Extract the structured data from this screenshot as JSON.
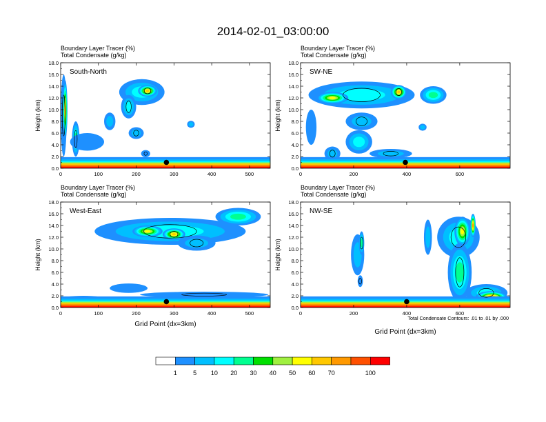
{
  "main_title": "2014-02-01_03:00:00",
  "header_line1": "Boundary Layer Tracer   (%)",
  "header_line2": "Total Condensate   (g/kg)",
  "contour_note": "Total Condensate Contours: .01 to .01 by .000",
  "colors": {
    "levels": [
      "#ffffff",
      "#1e90ff",
      "#00bfff",
      "#00ffff",
      "#00ff90",
      "#00e000",
      "#a0f040",
      "#ffff00",
      "#ffc800",
      "#ff9900",
      "#ff5000",
      "#ff0000"
    ],
    "marker": "#000000",
    "contour": "#000000"
  },
  "chart_data": [
    {
      "type": "heatmap",
      "panel_label": "South-North",
      "ylabel": "Height (km)",
      "xlabel": "",
      "xlim": [
        0,
        555
      ],
      "ylim": [
        0,
        18
      ],
      "xticks": [
        0,
        100,
        200,
        300,
        400,
        500
      ],
      "yticks": [
        "0.0",
        "2.0",
        "4.0",
        "6.0",
        "8.0",
        "10.0",
        "12.0",
        "14.0",
        "16.0",
        "18.0"
      ],
      "marker": {
        "x": 280,
        "y": 1.0
      },
      "features": [
        {
          "kind": "blob",
          "cx": 8,
          "cy": 9,
          "rx": 8,
          "ry": 7,
          "level": 1
        },
        {
          "kind": "blob",
          "cx": 12,
          "cy": 10,
          "rx": 6,
          "ry": 5,
          "level": 8
        },
        {
          "kind": "blob",
          "cx": 40,
          "cy": 5,
          "rx": 10,
          "ry": 3,
          "level": 4
        },
        {
          "kind": "blob",
          "cx": 215,
          "cy": 13,
          "rx": 60,
          "ry": 2.2,
          "level": 3
        },
        {
          "kind": "blob",
          "cx": 230,
          "cy": 13.2,
          "rx": 25,
          "ry": 1,
          "level": 8
        },
        {
          "kind": "blob",
          "cx": 130,
          "cy": 8,
          "rx": 15,
          "ry": 1.5,
          "level": 2
        },
        {
          "kind": "blob",
          "cx": 180,
          "cy": 10.5,
          "rx": 20,
          "ry": 2,
          "level": 3
        },
        {
          "kind": "blob",
          "cx": 70,
          "cy": 4.5,
          "rx": 45,
          "ry": 1.5,
          "level": 1
        },
        {
          "kind": "blob",
          "cx": 200,
          "cy": 6,
          "rx": 20,
          "ry": 1,
          "level": 2
        },
        {
          "kind": "blob",
          "cx": 345,
          "cy": 7.5,
          "rx": 10,
          "ry": 0.6,
          "level": 2
        },
        {
          "kind": "blob",
          "cx": 225,
          "cy": 2.5,
          "rx": 12,
          "ry": 0.6,
          "level": 1
        }
      ]
    },
    {
      "type": "heatmap",
      "panel_label": "SW-NE",
      "ylabel": "Height (km)",
      "xlabel": "",
      "xlim": [
        0,
        790
      ],
      "ylim": [
        0,
        18
      ],
      "xticks": [
        0,
        200,
        400,
        600
      ],
      "yticks": [
        "0.0",
        "2.0",
        "4.0",
        "6.0",
        "8.0",
        "10.0",
        "12.0",
        "14.0",
        "16.0",
        "18.0"
      ],
      "marker": {
        "x": 395,
        "y": 1.0
      },
      "features": [
        {
          "kind": "blob",
          "cx": 230,
          "cy": 12.5,
          "rx": 200,
          "ry": 2.3,
          "level": 3
        },
        {
          "kind": "blob",
          "cx": 120,
          "cy": 12,
          "rx": 60,
          "ry": 1,
          "level": 7
        },
        {
          "kind": "blob",
          "cx": 370,
          "cy": 13,
          "rx": 30,
          "ry": 1.2,
          "level": 8
        },
        {
          "kind": "blob",
          "cx": 500,
          "cy": 12.5,
          "rx": 50,
          "ry": 1.5,
          "level": 4
        },
        {
          "kind": "blob",
          "cx": 230,
          "cy": 8,
          "rx": 60,
          "ry": 1.5,
          "level": 2
        },
        {
          "kind": "blob",
          "cx": 220,
          "cy": 4.5,
          "rx": 50,
          "ry": 2,
          "level": 3
        },
        {
          "kind": "blob",
          "cx": 120,
          "cy": 2.5,
          "rx": 30,
          "ry": 1.2,
          "level": 2
        },
        {
          "kind": "blob",
          "cx": 40,
          "cy": 7,
          "rx": 20,
          "ry": 3,
          "level": 1
        },
        {
          "kind": "blob",
          "cx": 340,
          "cy": 2.5,
          "rx": 80,
          "ry": 0.8,
          "level": 2
        },
        {
          "kind": "blob",
          "cx": 460,
          "cy": 7,
          "rx": 15,
          "ry": 0.6,
          "level": 2
        }
      ]
    },
    {
      "type": "heatmap",
      "panel_label": "West-East",
      "ylabel": "Height (km)",
      "xlabel": "Grid Point (dx=3km)",
      "xlim": [
        0,
        555
      ],
      "ylim": [
        0,
        18
      ],
      "xticks": [
        0,
        100,
        200,
        300,
        400,
        500
      ],
      "yticks": [
        "0.0",
        "2.0",
        "4.0",
        "6.0",
        "8.0",
        "10.0",
        "12.0",
        "14.0",
        "16.0",
        "18.0"
      ],
      "marker": {
        "x": 280,
        "y": 1.0
      },
      "features": [
        {
          "kind": "blob",
          "cx": 290,
          "cy": 13,
          "rx": 200,
          "ry": 2.3,
          "level": 3
        },
        {
          "kind": "blob",
          "cx": 230,
          "cy": 13,
          "rx": 40,
          "ry": 1,
          "level": 7
        },
        {
          "kind": "blob",
          "cx": 300,
          "cy": 12.5,
          "rx": 30,
          "ry": 1,
          "level": 8
        },
        {
          "kind": "blob",
          "cx": 470,
          "cy": 15.5,
          "rx": 60,
          "ry": 1.5,
          "level": 4
        },
        {
          "kind": "blob",
          "cx": 360,
          "cy": 11,
          "rx": 50,
          "ry": 1.3,
          "level": 2
        },
        {
          "kind": "blob",
          "cx": 180,
          "cy": 3.3,
          "rx": 50,
          "ry": 0.8,
          "level": 1
        },
        {
          "kind": "blob",
          "cx": 380,
          "cy": 2.2,
          "rx": 170,
          "ry": 0.5,
          "level": 1
        },
        {
          "kind": "blob",
          "cx": 60,
          "cy": 1.5,
          "rx": 60,
          "ry": 0.5,
          "level": 1
        }
      ]
    },
    {
      "type": "heatmap",
      "panel_label": "NW-SE",
      "ylabel": "Height (km)",
      "xlabel": "Grid Point (dx=3km)",
      "xlim": [
        0,
        790
      ],
      "ylim": [
        0,
        18
      ],
      "xticks": [
        0,
        200,
        400,
        600
      ],
      "yticks": [
        "0.0",
        "2.0",
        "4.0",
        "6.0",
        "8.0",
        "10.0",
        "12.0",
        "14.0",
        "16.0",
        "18.0"
      ],
      "marker": {
        "x": 400,
        "y": 1.0
      },
      "features": [
        {
          "kind": "blob",
          "cx": 595,
          "cy": 12,
          "rx": 80,
          "ry": 3.5,
          "level": 3
        },
        {
          "kind": "blob",
          "cx": 610,
          "cy": 13,
          "rx": 30,
          "ry": 2.5,
          "level": 7
        },
        {
          "kind": "blob",
          "cx": 600,
          "cy": 6,
          "rx": 45,
          "ry": 5,
          "level": 4
        },
        {
          "kind": "blob",
          "cx": 650,
          "cy": 14,
          "rx": 10,
          "ry": 2,
          "level": 9
        },
        {
          "kind": "blob",
          "cx": 700,
          "cy": 2.5,
          "rx": 80,
          "ry": 1.5,
          "level": 3
        },
        {
          "kind": "blob",
          "cx": 215,
          "cy": 9,
          "rx": 25,
          "ry": 3.5,
          "level": 2
        },
        {
          "kind": "blob",
          "cx": 230,
          "cy": 11,
          "rx": 10,
          "ry": 2,
          "level": 4
        },
        {
          "kind": "blob",
          "cx": 480,
          "cy": 12,
          "rx": 15,
          "ry": 3,
          "level": 2
        },
        {
          "kind": "blob",
          "cx": 225,
          "cy": 4.5,
          "rx": 10,
          "ry": 1,
          "level": 1
        },
        {
          "kind": "blob",
          "cx": 720,
          "cy": 1.8,
          "rx": 60,
          "ry": 1,
          "level": 9
        }
      ]
    }
  ],
  "colorbar": {
    "labels": [
      "1",
      "5",
      "10",
      "20",
      "30",
      "40",
      "50",
      "60",
      "70",
      "100"
    ]
  }
}
